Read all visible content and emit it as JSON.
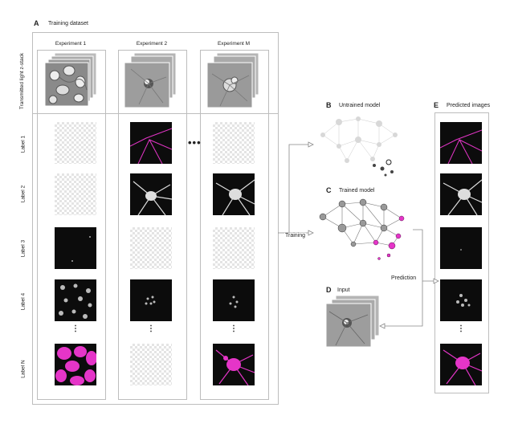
{
  "panels": {
    "A": {
      "letter": "A",
      "title": "Training dataset"
    },
    "B": {
      "letter": "B",
      "title": "Untrained model"
    },
    "C": {
      "letter": "C",
      "title": "Trained model"
    },
    "D": {
      "letter": "D",
      "title": "Input"
    },
    "E": {
      "letter": "E",
      "title": "Predicted images"
    }
  },
  "columns": [
    "Experiment 1",
    "Experiment 2",
    "Experiment M"
  ],
  "column_ellipsis": "•••",
  "rows": {
    "stack": "Transmitted light z-stack",
    "labels": [
      "Label 1",
      "Label 2",
      "Label 3",
      "Label 4",
      "Label N"
    ]
  },
  "row_ellipsis": "⋮",
  "flows": {
    "training": "Training",
    "prediction": "Prediction"
  },
  "colors": {
    "magenta": "#e535c8",
    "dark_tile": "#0c0c0c",
    "gray_tile": "#9a9a9a",
    "border": "#bdbdbd"
  }
}
